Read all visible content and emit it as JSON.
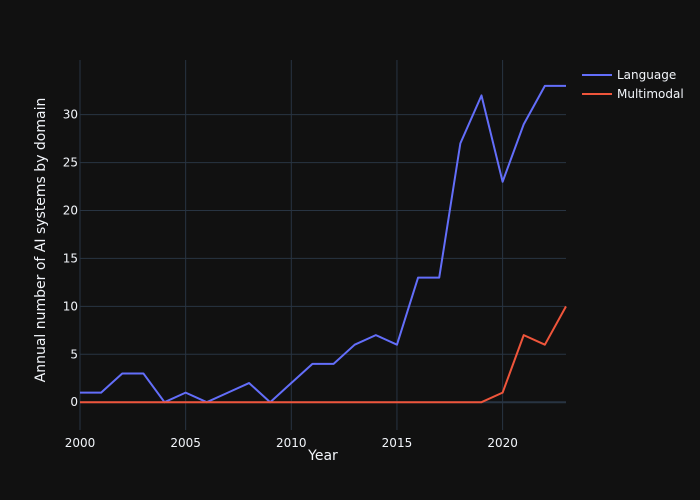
{
  "chart_data": {
    "type": "line",
    "xlabel": "Year",
    "ylabel": "Annual number of AI systems by domain",
    "xlim": [
      2000,
      2023
    ],
    "ylim": [
      -2.9,
      35.7
    ],
    "x_ticks": [
      2000,
      2005,
      2010,
      2015,
      2020
    ],
    "y_ticks": [
      0,
      5,
      10,
      15,
      20,
      25,
      30
    ],
    "grid": true,
    "legend_position": "top-right",
    "x": [
      2000,
      2001,
      2002,
      2003,
      2004,
      2005,
      2006,
      2007,
      2008,
      2009,
      2010,
      2011,
      2012,
      2013,
      2014,
      2015,
      2016,
      2017,
      2018,
      2019,
      2020,
      2021,
      2022,
      2023
    ],
    "series": [
      {
        "name": "Language",
        "color": "#636efa",
        "values": [
          1,
          1,
          3,
          3,
          0,
          1,
          0,
          1,
          2,
          0,
          2,
          4,
          4,
          6,
          7,
          6,
          13,
          13,
          27,
          32,
          23,
          29,
          33,
          33
        ]
      },
      {
        "name": "Multimodal",
        "color": "#ef553b",
        "values": [
          0,
          0,
          0,
          0,
          0,
          0,
          0,
          0,
          0,
          0,
          0,
          0,
          0,
          0,
          0,
          0,
          0,
          0,
          0,
          0,
          1,
          7,
          6,
          10
        ]
      }
    ]
  },
  "colors": {
    "background": "#111111",
    "grid": "#283442",
    "zeroline": "#283442",
    "text": "#f2f5fa"
  }
}
